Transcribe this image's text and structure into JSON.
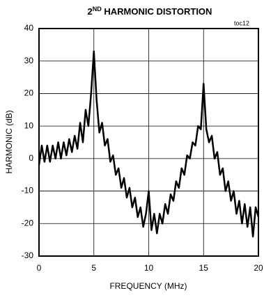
{
  "chart_data": {
    "type": "line",
    "title_parts": [
      "2",
      "ND",
      " HARMONIC DISTORTION"
    ],
    "annotation": "toc12",
    "x_label": "FREQUENCY (MHz)",
    "y_label": "HARMONIC (dB)",
    "xlim": [
      0,
      20
    ],
    "xticks": [
      0,
      5,
      10,
      15,
      20
    ],
    "ylim": [
      -30,
      40
    ],
    "yticks": [
      -30,
      -20,
      -10,
      0,
      10,
      20,
      30,
      40
    ],
    "grid": true,
    "x": [
      0,
      0.25,
      0.5,
      0.75,
      1,
      1.25,
      1.5,
      1.75,
      2,
      2.25,
      2.5,
      2.75,
      3,
      3.25,
      3.5,
      3.75,
      4,
      4.25,
      4.5,
      4.75,
      5,
      5.25,
      5.5,
      5.75,
      6,
      6.25,
      6.5,
      6.75,
      7,
      7.25,
      7.5,
      7.75,
      8,
      8.25,
      8.5,
      8.75,
      9,
      9.25,
      9.5,
      9.75,
      10,
      10.25,
      10.5,
      10.75,
      11,
      11.25,
      11.5,
      11.75,
      12,
      12.25,
      12.5,
      12.75,
      13,
      13.25,
      13.5,
      13.75,
      14,
      14.25,
      14.5,
      14.75,
      15,
      15.25,
      15.5,
      15.75,
      16,
      16.25,
      16.5,
      16.75,
      17,
      17.25,
      17.5,
      17.75,
      18,
      18.25,
      18.5,
      18.75,
      19,
      19.25,
      19.5,
      19.75,
      20
    ],
    "series": [
      {
        "color": "#000000",
        "values": [
          -2,
          4,
          -1,
          4,
          -1,
          4,
          0,
          5,
          0,
          5,
          1,
          6,
          2,
          7,
          3,
          11,
          5,
          15,
          10,
          20,
          33,
          18,
          8,
          11,
          4,
          6,
          -1,
          1,
          -5,
          -3,
          -9,
          -6,
          -12,
          -9,
          -15,
          -12,
          -18,
          -15,
          -21,
          -17,
          -10,
          -22,
          -17,
          -23,
          -17,
          -20,
          -14,
          -17,
          -11,
          -13,
          -7,
          -9,
          -3,
          -5,
          1,
          0,
          5,
          4,
          10,
          9,
          23,
          9,
          5,
          7,
          0,
          2,
          -5,
          -3,
          -10,
          -7,
          -13,
          -10,
          -17,
          -13,
          -20,
          -14,
          -21,
          -15,
          -24,
          -15,
          -18
        ]
      }
    ]
  }
}
